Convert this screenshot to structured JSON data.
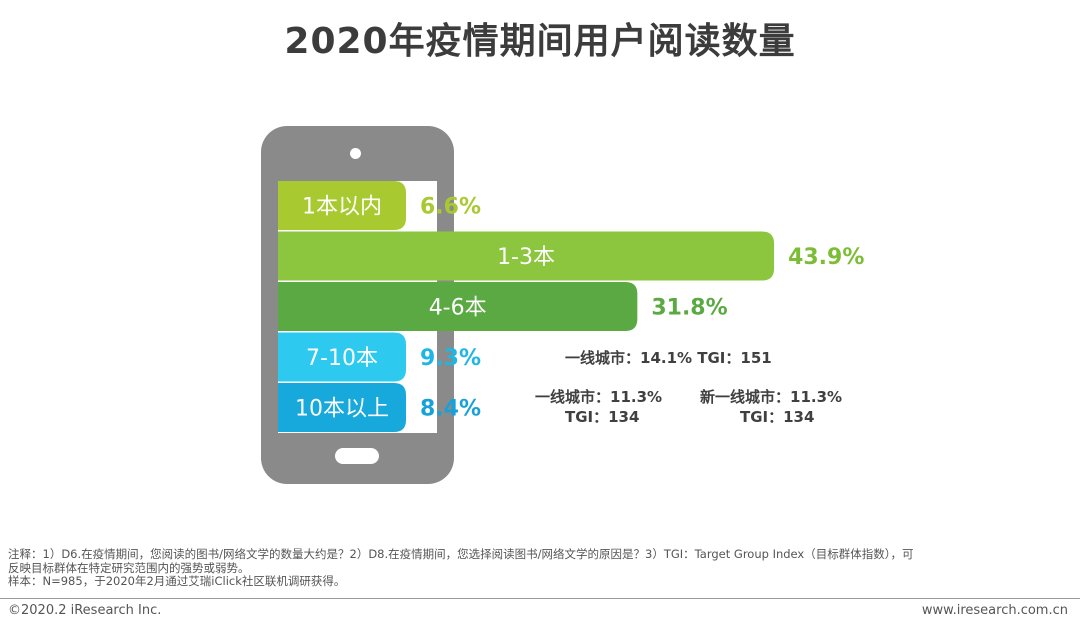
{
  "title": "2020年疫情期间用户阅读数量",
  "chart_data": {
    "type": "bar",
    "orientation": "horizontal",
    "categories": [
      "1本以内",
      "1-3本",
      "4-6本",
      "7-10本",
      "10本以上"
    ],
    "values": [
      6.6,
      43.9,
      31.8,
      9.3,
      8.4
    ],
    "value_labels": [
      "6.6%",
      "43.9%",
      "31.8%",
      "9.3%",
      "8.4%"
    ],
    "colors": [
      "#a9c930",
      "#8cc63f",
      "#5ba942",
      "#2ec9ef",
      "#18a9dc"
    ],
    "value_label_colors": [
      "#a9c930",
      "#7dbd35",
      "#5ba942",
      "#1fb6e6",
      "#18a0d8"
    ],
    "title": "",
    "xlabel": "",
    "ylabel": ""
  },
  "annotations": {
    "seven_to_ten": "一线城市：14.1% TGI：151",
    "ten_plus_tier1_pct": "一线城市：11.3%",
    "ten_plus_tier1_tgi": "TGI：134",
    "ten_plus_newtier1_pct": "新一线城市：11.3%",
    "ten_plus_newtier1_tgi": "TGI：134"
  },
  "notes": {
    "line1": "注释：1）D6.在疫情期间，您阅读的图书/网络文学的数量大约是？2）D8.在疫情期间，您选择阅读图书/网络文学的原因是？3）TGI：Target Group Index（目标群体指数），可",
    "line2": "反映目标群体在特定研究范围内的强势或弱势。",
    "line3": "样本：N=985，于2020年2月通过艾瑞iClick社区联机调研获得。"
  },
  "footer": {
    "copyright": "©2020.2 iResearch Inc.",
    "website": "www.iresearch.com.cn"
  }
}
